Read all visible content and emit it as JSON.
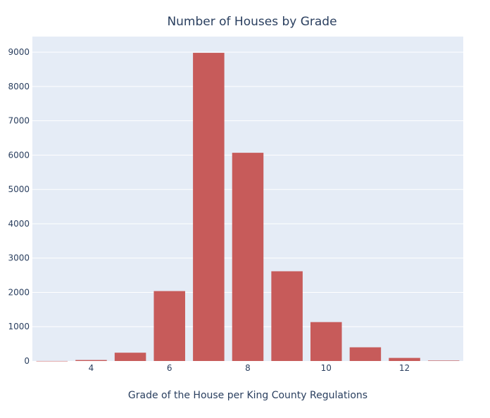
{
  "chart_data": {
    "type": "bar",
    "title": "Number of Houses by Grade",
    "xlabel": "Grade of the House per King County Regulations",
    "ylabel": "",
    "x": [
      3,
      4,
      5,
      6,
      7,
      8,
      9,
      10,
      11,
      12,
      13
    ],
    "values": [
      1,
      29,
      242,
      2038,
      8981,
      6068,
      2615,
      1134,
      399,
      90,
      13
    ],
    "xticks": [
      4,
      6,
      8,
      10,
      12
    ],
    "yticks": [
      0,
      1000,
      2000,
      3000,
      4000,
      5000,
      6000,
      7000,
      8000,
      9000
    ],
    "xlim": [
      2.5,
      13.5
    ],
    "ylim": [
      0,
      9454
    ],
    "grid": true,
    "legend": "none",
    "colors": {
      "bar": "#c75b5a",
      "plot_background": "#e5ecf6",
      "grid": "#ffffff",
      "text": "#2a3f5f"
    }
  }
}
